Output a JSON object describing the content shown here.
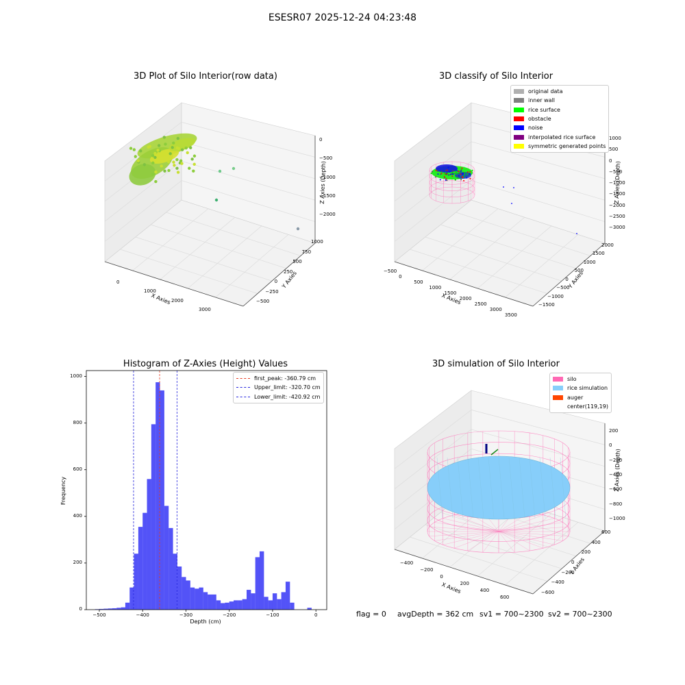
{
  "figure": {
    "suptitle": "ESESR07 2025-12-24 04:23:48",
    "status_line": {
      "flag": "flag = 0",
      "avg_depth": "avgDepth = 362 cm",
      "sv1": "sv1 = 700~2300",
      "sv2": "sv2 = 700~2300"
    }
  },
  "colors": {
    "hist_bar": "#4a4af7",
    "first_peak_line": "#e8391f",
    "limit_line": "#2222dd",
    "silo": "#ff69b4",
    "rice_simulation": "#87cefa",
    "auger": "#ff4500",
    "original_data": "#b0b0b0",
    "inner_wall": "#808080",
    "rice_surface": "#00ff00",
    "obstacle": "#ff0000",
    "noise": "#0000ff",
    "interpolated_rice_surface": "#800080",
    "symmetric_generated_points": "#ffff00",
    "raw_points": "#9ad43a"
  },
  "chart_data": [
    {
      "type": "scatter",
      "title": "3D Plot of Silo Interior(row data)",
      "xlabel": "X Axies",
      "ylabel": "Y Axies",
      "zlabel": "Z Axies (Depth)",
      "xticks": [
        "0",
        "1000",
        "2000",
        "3000"
      ],
      "yticks": [
        "−500",
        "−250",
        "0",
        "250",
        "500",
        "750",
        "1000"
      ],
      "zticks": [
        "−2000",
        "−1500",
        "−1000",
        "−500",
        "0"
      ],
      "projection": "3d",
      "grid": true
    },
    {
      "type": "scatter",
      "title": "3D classify of Silo Interior",
      "xlabel": "X Axies",
      "ylabel": "Y Axies",
      "zlabel": "Z Axies (Depth)",
      "xticks": [
        "−500",
        "0",
        "500",
        "1000",
        "1500",
        "2000",
        "2500",
        "3000",
        "3500"
      ],
      "yticks": [
        "−1500",
        "−1000",
        "−500",
        "0",
        "500",
        "1000",
        "1500",
        "2000"
      ],
      "zticks": [
        "−3000",
        "−2500",
        "−2000",
        "−1500",
        "−1000",
        "−500",
        "0",
        "500",
        "1000"
      ],
      "legend": [
        "original data",
        "inner wall",
        "rice surface",
        "obstacle",
        "noise",
        "interpolated rice surface",
        "symmetric generated points"
      ],
      "legend_position": "top-right",
      "projection": "3d",
      "grid": true
    },
    {
      "type": "bar",
      "title": "Histogram of Z-Axies (Height) Values",
      "xlabel": "Depth (cm)",
      "ylabel": "Frequency",
      "xlim": [
        -530,
        25
      ],
      "ylim": [
        0,
        1025
      ],
      "xticks": [
        -500,
        -400,
        -300,
        -200,
        -100,
        0
      ],
      "yticks": [
        0,
        200,
        400,
        600,
        800,
        1000
      ],
      "bin_width": 10.1,
      "bins": [
        [
          -510,
          2
        ],
        [
          -500,
          3
        ],
        [
          -490,
          4
        ],
        [
          -480,
          5
        ],
        [
          -470,
          6
        ],
        [
          -460,
          8
        ],
        [
          -450,
          10
        ],
        [
          -440,
          30
        ],
        [
          -430,
          95
        ],
        [
          -420,
          240
        ],
        [
          -410,
          355
        ],
        [
          -400,
          415
        ],
        [
          -390,
          560
        ],
        [
          -380,
          795
        ],
        [
          -370,
          975
        ],
        [
          -360,
          940
        ],
        [
          -350,
          445
        ],
        [
          -340,
          350
        ],
        [
          -330,
          240
        ],
        [
          -320,
          185
        ],
        [
          -310,
          140
        ],
        [
          -300,
          125
        ],
        [
          -290,
          95
        ],
        [
          -280,
          90
        ],
        [
          -270,
          95
        ],
        [
          -260,
          75
        ],
        [
          -250,
          65
        ],
        [
          -240,
          65
        ],
        [
          -230,
          40
        ],
        [
          -220,
          28
        ],
        [
          -210,
          30
        ],
        [
          -200,
          35
        ],
        [
          -190,
          40
        ],
        [
          -180,
          40
        ],
        [
          -170,
          45
        ],
        [
          -160,
          85
        ],
        [
          -150,
          70
        ],
        [
          -140,
          225
        ],
        [
          -130,
          250
        ],
        [
          -120,
          55
        ],
        [
          -110,
          40
        ],
        [
          -100,
          70
        ],
        [
          -90,
          45
        ],
        [
          -80,
          75
        ],
        [
          -70,
          120
        ],
        [
          -60,
          30
        ],
        [
          -20,
          8
        ]
      ],
      "vlines": [
        {
          "label": "first_peak: -360.79 cm",
          "x": -360.79,
          "color": "#e8391f"
        },
        {
          "label": "Upper_limit: -320.70 cm",
          "x": -320.7,
          "color": "#2222dd"
        },
        {
          "label": "Lower_limit: -420.92 cm",
          "x": -420.92,
          "color": "#2222dd"
        }
      ],
      "legend_position": "top-right",
      "grid": false
    },
    {
      "type": "scatter",
      "title": "3D simulation of Silo Interior",
      "xlabel": "X Axies",
      "ylabel": "Y Axies",
      "zlabel": "Z Axies (Depth)",
      "xticks": [
        "−400",
        "−200",
        "0",
        "200",
        "400",
        "600"
      ],
      "yticks": [
        "−600",
        "−400",
        "−200",
        "0",
        "200",
        "400",
        "600"
      ],
      "zticks": [
        "−1000",
        "−800",
        "−600",
        "−400",
        "−200",
        "0",
        "200"
      ],
      "legend": [
        "silo",
        "rice simulation",
        "auger",
        "center(119,19)"
      ],
      "legend_position": "top-right",
      "projection": "3d",
      "grid": true
    }
  ]
}
